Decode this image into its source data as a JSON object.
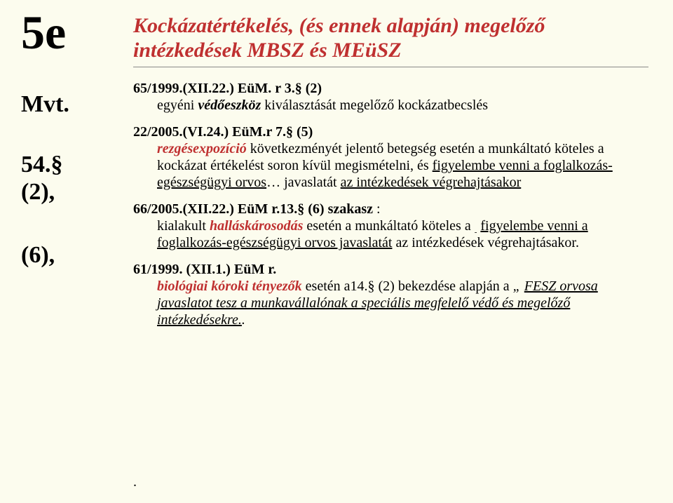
{
  "colors": {
    "background": "#fcfcee",
    "text": "#000000",
    "accent_red": "#bf3030",
    "rule": "#888888"
  },
  "left": {
    "marker": "5e",
    "mvt": "Mvt.",
    "sec54_line1": "54.§",
    "sec54_line2": "(2),",
    "sec6": "(6),"
  },
  "title": {
    "line1": "Kockázatértékelés, (és ennek alapján) megelőző",
    "line2": "intézkedések MBSZ és MEüSZ"
  },
  "p1": {
    "lead": "65/1999.(XII.22.) EüM. r 3.§ (2)",
    "body_pre": "egyéni ",
    "body_emph": "védőeszköz",
    "body_post": " kiválasztását megelőző  kockázatbecslés"
  },
  "p2": {
    "lead": "22/2005.(VI.24.) EüM.r  7.§ (5)",
    "l1_emph": "rezgésexpozíció",
    "l1_rest": " következményét jelentő betegség esetén a munkáltató köteles a kockázat értékelést soron kívül megismételni, és ",
    "l2_ul1": "figyelembe venni a foglalkozás-egészségügyi orvos",
    "l2_mid": "… javaslatát ",
    "l2_ul2": "az intézkedések végrehajtásakor"
  },
  "p3": {
    "lead": "66/2005.(XII.22.) EüM r.13.§ (6) szakasz",
    "colon": " :",
    "l1_a": "kialakult ",
    "l1_emph": "halláskárosodás",
    "l1_b": " esetén a munkáltató köteles a",
    "sub": "-",
    "l2_ul": "figyelembe venni a foglalkozás-egészségügyi orvos javaslatát",
    "l2_tail": " az intézkedések végrehajtásakor."
  },
  "p4": {
    "lead": "61/1999. (XII.1.) EüM r.",
    "l1_emph": "biológiai kóroki tényezők",
    "l1_rest": " esetén a14.§ (2) bekezdése alapján a ",
    "l1_tail_pre": "„ ",
    "l1_tail_ul": "FESZ orvosa javaslatot tesz a munkavállalónak a speciális megfelelő védő és megelőző intézkedésekre.",
    "l1_end": "."
  },
  "dot": "."
}
